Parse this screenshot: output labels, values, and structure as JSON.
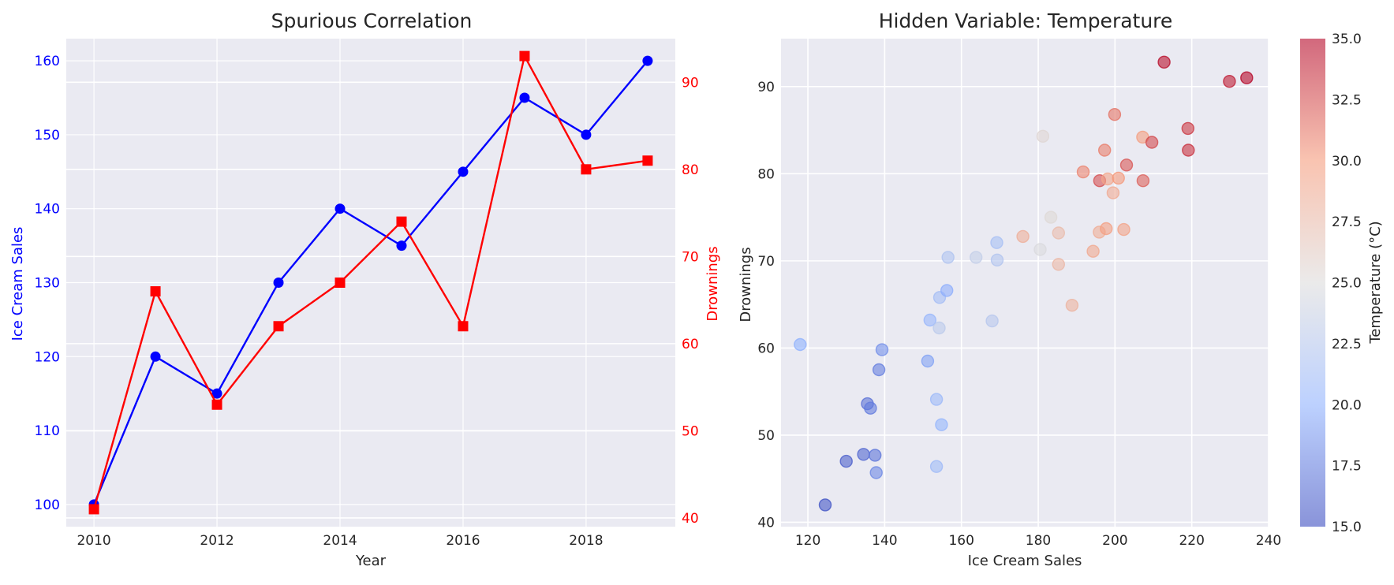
{
  "figure": {
    "background": "#ffffff",
    "panel_background": "#eaeaf2",
    "grid_color": "#ffffff"
  },
  "chart_data": [
    {
      "type": "line",
      "title": "Spurious Correlation",
      "xlabel": "Year",
      "ylabel_left": "Ice Cream Sales",
      "ylabel_right": "Drownings",
      "xlim": [
        2009.55,
        2019.45
      ],
      "ylim_left": [
        97.0,
        163.0
      ],
      "ylim_right": [
        39.0,
        95.0
      ],
      "x_ticks": [
        2010,
        2012,
        2014,
        2016,
        2018
      ],
      "y_ticks_left": [
        100,
        110,
        120,
        130,
        140,
        150,
        160
      ],
      "y_ticks_right": [
        40,
        50,
        60,
        70,
        80,
        90
      ],
      "grid": true,
      "x": [
        2010,
        2011,
        2012,
        2013,
        2014,
        2015,
        2016,
        2017,
        2018,
        2019
      ],
      "series": [
        {
          "name": "Ice Cream Sales",
          "axis": "left",
          "color": "#0000ff",
          "marker": "circle",
          "values": [
            100,
            120,
            115,
            130,
            140,
            135,
            145,
            155,
            150,
            160
          ]
        },
        {
          "name": "Drownings",
          "axis": "right",
          "color": "#ff0000",
          "marker": "square",
          "values": [
            41,
            66,
            53,
            62,
            67,
            74,
            62,
            93,
            80,
            81
          ]
        }
      ]
    },
    {
      "type": "scatter",
      "title": "Hidden Variable: Temperature",
      "xlabel": "Ice Cream Sales",
      "ylabel": "Drownings",
      "xlim": [
        113,
        240
      ],
      "ylim": [
        39.5,
        95.5
      ],
      "x_ticks": [
        120,
        140,
        160,
        180,
        200,
        220,
        240
      ],
      "y_ticks": [
        40,
        50,
        60,
        70,
        80,
        90
      ],
      "grid": true,
      "colorbar": {
        "label": "Temperature (°C)",
        "range": [
          15.0,
          35.0
        ],
        "ticks": [
          "15.0",
          "17.5",
          "20.0",
          "22.5",
          "25.0",
          "27.5",
          "30.0",
          "32.5",
          "35.0"
        ],
        "colormap": "coolwarm"
      },
      "points": [
        [
          118,
          60.4,
          20.0
        ],
        [
          124.5,
          42.0,
          15.5
        ],
        [
          130,
          47.0,
          16.0
        ],
        [
          134.5,
          47.8,
          16.3
        ],
        [
          137.5,
          47.7,
          17.0
        ],
        [
          137.8,
          45.7,
          18.0
        ],
        [
          135.5,
          53.6,
          16.8
        ],
        [
          136.3,
          53.1,
          17.3
        ],
        [
          138.5,
          57.5,
          17.5
        ],
        [
          139.3,
          59.8,
          18.3
        ],
        [
          151.2,
          58.5,
          19.2
        ],
        [
          151.8,
          63.2,
          20.5
        ],
        [
          154.2,
          62.3,
          22.8
        ],
        [
          153.5,
          54.1,
          20.8
        ],
        [
          154.8,
          51.2,
          20.3
        ],
        [
          153.5,
          46.4,
          21.0
        ],
        [
          154.3,
          65.8,
          21.3
        ],
        [
          156.2,
          66.6,
          19.8
        ],
        [
          156.5,
          70.4,
          22.0
        ],
        [
          163.8,
          70.4,
          23.3
        ],
        [
          169.2,
          72.1,
          21.5
        ],
        [
          169.3,
          70.1,
          22.2
        ],
        [
          168.0,
          63.1,
          22.5
        ],
        [
          176.0,
          72.8,
          28.5
        ],
        [
          180.5,
          71.3,
          24.8
        ],
        [
          181.2,
          84.3,
          25.5
        ],
        [
          183.3,
          75.0,
          25.3
        ],
        [
          185.3,
          73.2,
          27.6
        ],
        [
          185.3,
          69.6,
          27.9
        ],
        [
          188.8,
          64.9,
          28.2
        ],
        [
          191.7,
          80.2,
          30.8
        ],
        [
          194.3,
          71.1,
          29.0
        ],
        [
          195.9,
          73.3,
          28.7
        ],
        [
          196.0,
          79.2,
          32.5
        ],
        [
          197.3,
          82.7,
          31.0
        ],
        [
          197.7,
          73.7,
          29.7
        ],
        [
          198.1,
          79.4,
          29.3
        ],
        [
          199.5,
          77.8,
          28.9
        ],
        [
          199.9,
          86.8,
          31.3
        ],
        [
          200.9,
          79.5,
          30.1
        ],
        [
          202.3,
          73.6,
          29.4
        ],
        [
          203.0,
          81.0,
          32.2
        ],
        [
          207.2,
          84.2,
          29.8
        ],
        [
          207.3,
          79.2,
          31.9
        ],
        [
          209.6,
          83.6,
          32.7
        ],
        [
          212.8,
          92.8,
          34.6
        ],
        [
          219.0,
          85.2,
          33.2
        ],
        [
          219.1,
          82.7,
          33.5
        ],
        [
          229.8,
          90.6,
          34.2
        ],
        [
          234.3,
          91.0,
          34.9
        ]
      ]
    }
  ]
}
